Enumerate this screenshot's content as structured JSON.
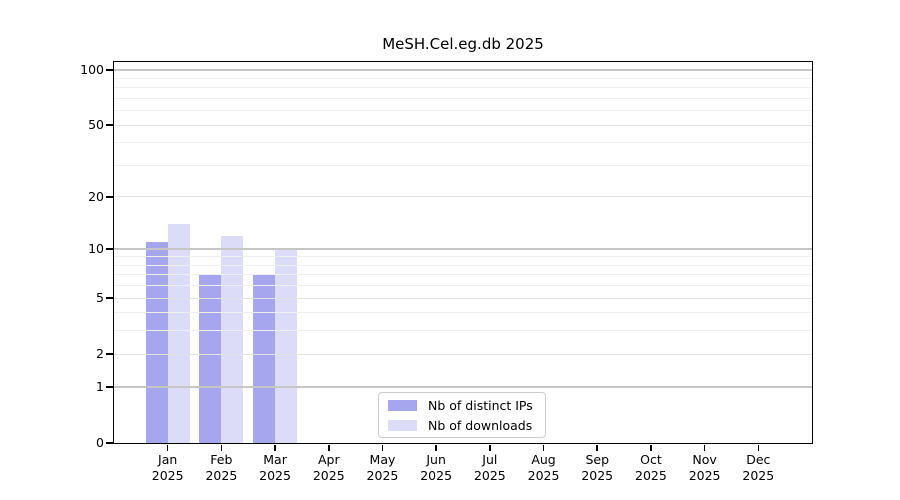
{
  "chart_data": {
    "type": "bar",
    "title": "MeSH.Cel.eg.db 2025",
    "categories": [
      "Jan",
      "Feb",
      "Mar",
      "Apr",
      "May",
      "Jun",
      "Jul",
      "Aug",
      "Sep",
      "Oct",
      "Nov",
      "Dec"
    ],
    "category_year": "2025",
    "series": [
      {
        "name": "Nb of distinct IPs",
        "color": "#a6a6ef",
        "values": [
          11,
          7,
          7,
          0,
          0,
          0,
          0,
          0,
          0,
          0,
          0,
          0
        ]
      },
      {
        "name": "Nb of downloads",
        "color": "#dcdcf8",
        "values": [
          14,
          12,
          10,
          0,
          0,
          0,
          0,
          0,
          0,
          0,
          0,
          0
        ]
      }
    ],
    "yaxis": {
      "scale": "log1p",
      "ticks": [
        0,
        1,
        2,
        5,
        10,
        20,
        50,
        100
      ],
      "ylim": [
        0,
        115
      ],
      "decade_gridlines": [
        1,
        10,
        100
      ],
      "labeled_gridlines": [
        2,
        5,
        20,
        50
      ],
      "minor_gridlines": [
        3,
        4,
        6,
        7,
        8,
        9,
        30,
        40,
        60,
        70,
        80,
        90
      ]
    },
    "legend": {
      "position": "inside-bottom-center",
      "entries": [
        "Nb of distinct IPs",
        "Nb of downloads"
      ]
    },
    "grid": true,
    "colors": {
      "spine": "#000000",
      "decade_grid": "#c6c6c6",
      "labeled_grid": "#e2e2e2",
      "minor_grid": "#efefef",
      "background": "#ffffff"
    }
  }
}
